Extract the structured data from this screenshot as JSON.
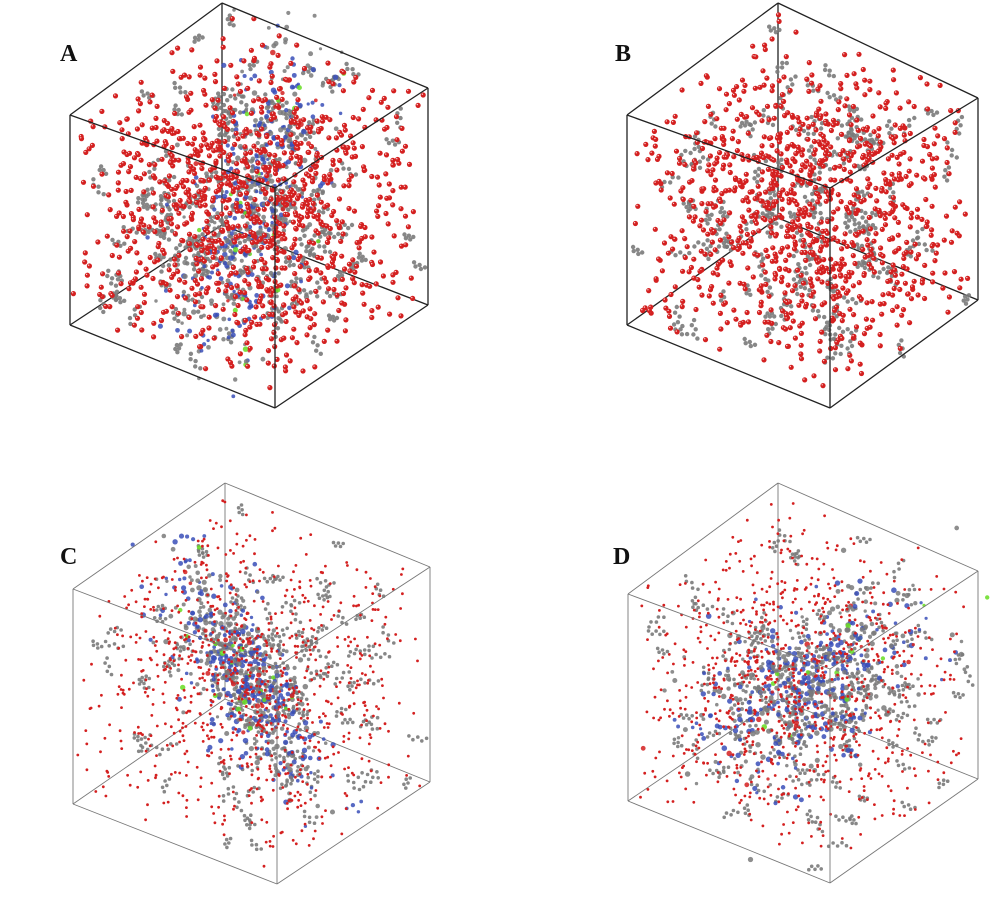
{
  "panels": [
    {
      "id": "A",
      "label": "A",
      "style": "dense",
      "cluster": true
    },
    {
      "id": "B",
      "label": "B",
      "style": "dense",
      "cluster": false
    },
    {
      "id": "C",
      "label": "C",
      "style": "sparse",
      "cluster": true
    },
    {
      "id": "D",
      "label": "D",
      "style": "sparse",
      "cluster": true
    }
  ],
  "colors": {
    "oxygen": "#d42020",
    "oxygen_highlight": "#ffffff",
    "carbon": "#7a7a7a",
    "nitrogen": "#3a4fb8",
    "accent": "#66dd22",
    "box_edge_dense": "#222222",
    "box_edge_sparse": "#777777"
  }
}
